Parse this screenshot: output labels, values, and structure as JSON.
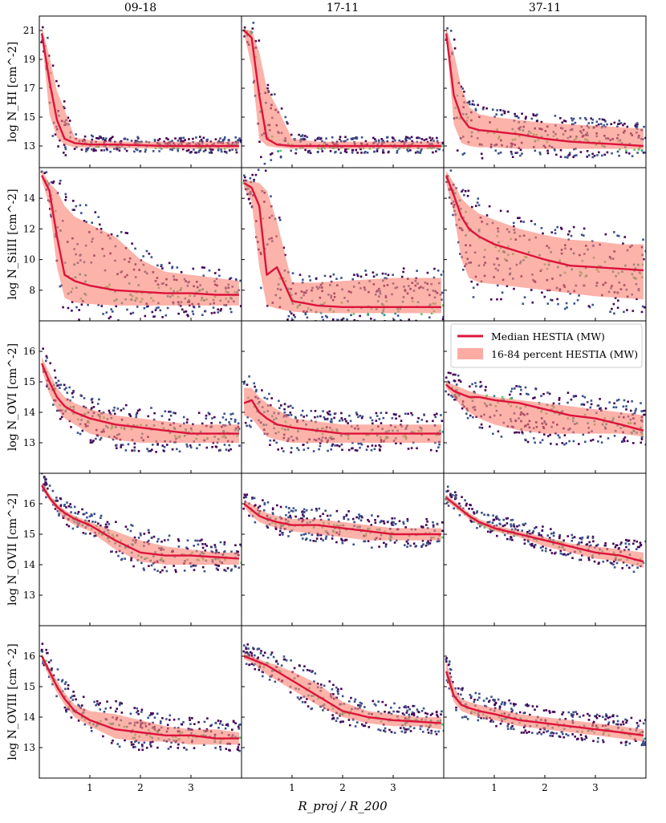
{
  "figure": {
    "xlabel": "R_proj / R_200",
    "columns": [
      "09-18",
      "17-11",
      "37-11"
    ],
    "legend": {
      "median_label": "Median HESTIA (MW)",
      "band_label": "16-84 percent HESTIA (MW)",
      "median_color": "#dc143c",
      "band_color": "#fa8072"
    },
    "colormap": [
      "#440154",
      "#3b528b",
      "#21918c",
      "#5ec962",
      "#fde725"
    ]
  },
  "chart_data": [
    {
      "type": "line",
      "ion": "HI",
      "ylabel": "log N_HI [cm^-2]",
      "xlim": [
        0,
        4
      ],
      "ylim": [
        11.5,
        22
      ],
      "xticks": [
        1,
        2,
        3
      ],
      "yticks": [
        13,
        15,
        17,
        19,
        21
      ],
      "panels": [
        {
          "column": "09-18",
          "x": [
            0.05,
            0.2,
            0.35,
            0.5,
            0.7,
            1,
            1.5,
            2,
            2.5,
            3,
            3.5,
            3.95
          ],
          "median": [
            20.8,
            17.5,
            14.8,
            13.5,
            13.2,
            13.1,
            13.1,
            13.05,
            13,
            13,
            13,
            13
          ],
          "p16": [
            20.5,
            15.2,
            13.6,
            13.1,
            12.9,
            12.9,
            12.85,
            12.85,
            12.8,
            12.8,
            12.8,
            12.8
          ],
          "p84": [
            21.2,
            19.2,
            16.8,
            15.5,
            13.6,
            13.4,
            13.3,
            13.3,
            13.3,
            13.3,
            13.3,
            13.3
          ]
        },
        {
          "column": "17-11",
          "x": [
            0.05,
            0.2,
            0.35,
            0.5,
            0.7,
            1,
            1.5,
            2,
            2.5,
            3,
            3.5,
            3.95
          ],
          "median": [
            21,
            20.5,
            16.5,
            13.5,
            13.1,
            13,
            13,
            13,
            13,
            13,
            13,
            13
          ],
          "p16": [
            20.8,
            18.5,
            13.5,
            13,
            12.9,
            12.8,
            12.8,
            12.8,
            12.8,
            12.8,
            12.8,
            12.8
          ],
          "p84": [
            21.1,
            21,
            19.5,
            17,
            15.7,
            13.5,
            13.3,
            13.3,
            13.3,
            13.3,
            13.3,
            13.3
          ]
        },
        {
          "column": "37-11",
          "x": [
            0.05,
            0.2,
            0.35,
            0.5,
            0.7,
            1,
            1.5,
            2,
            2.5,
            3,
            3.5,
            3.95
          ],
          "median": [
            20.8,
            16.5,
            15,
            14.3,
            14.1,
            14,
            13.8,
            13.5,
            13.3,
            13.2,
            13.1,
            13
          ],
          "p16": [
            20.5,
            14.5,
            13.2,
            13,
            12.9,
            12.9,
            12.8,
            12.8,
            12.8,
            12.8,
            12.8,
            12.8
          ],
          "p84": [
            21.2,
            19.5,
            17,
            15.7,
            15.2,
            15,
            14.8,
            14.6,
            14.5,
            14.4,
            14.3,
            14.2
          ]
        }
      ]
    },
    {
      "type": "line",
      "ion": "SiIII",
      "ylabel": "log N_SiIII [cm^-2]",
      "xlim": [
        0,
        4
      ],
      "ylim": [
        6,
        16
      ],
      "xticks": [
        1,
        2,
        3
      ],
      "yticks": [
        8,
        10,
        12,
        14
      ],
      "panels": [
        {
          "column": "09-18",
          "x": [
            0.05,
            0.2,
            0.35,
            0.5,
            0.7,
            1,
            1.5,
            2,
            2.5,
            3,
            3.5,
            3.95
          ],
          "median": [
            15.5,
            14.5,
            11.5,
            9,
            8.6,
            8.3,
            8,
            7.9,
            7.8,
            7.8,
            7.7,
            7.7
          ],
          "p16": [
            15.2,
            13.5,
            9.5,
            7.5,
            7.2,
            7.1,
            7,
            7,
            7,
            7,
            7,
            7
          ],
          "p84": [
            15.8,
            15,
            14.5,
            13.5,
            12.8,
            12.3,
            11.5,
            10,
            9.2,
            9,
            8.8,
            8.6
          ]
        },
        {
          "column": "17-11",
          "x": [
            0.05,
            0.2,
            0.35,
            0.5,
            0.7,
            1,
            1.5,
            2,
            2.5,
            3,
            3.5,
            3.95
          ],
          "median": [
            15,
            14.7,
            13.5,
            9,
            9.5,
            7.3,
            7,
            6.9,
            6.9,
            6.9,
            6.9,
            6.9
          ],
          "p16": [
            14.7,
            13.8,
            9.5,
            7,
            6.8,
            6.6,
            6.5,
            6.5,
            6.5,
            6.5,
            6.5,
            6.5
          ],
          "p84": [
            15.2,
            15.1,
            15,
            14.5,
            12.5,
            8.5,
            8.5,
            8.6,
            8.7,
            8.8,
            8.8,
            8.8
          ]
        },
        {
          "column": "37-11",
          "x": [
            0.05,
            0.2,
            0.35,
            0.5,
            0.7,
            1,
            1.5,
            2,
            2.5,
            3,
            3.5,
            3.95
          ],
          "median": [
            15.5,
            14.2,
            12.8,
            12,
            11.5,
            11,
            10.5,
            10,
            9.6,
            9.5,
            9.4,
            9.3
          ],
          "p16": [
            15,
            13,
            10,
            8.8,
            8.5,
            8.4,
            8.2,
            8,
            7.8,
            7.6,
            7.5,
            7.4
          ],
          "p84": [
            15.8,
            15,
            14,
            13.5,
            13,
            12.6,
            12,
            11.6,
            11.3,
            11.2,
            11,
            11
          ]
        }
      ]
    },
    {
      "type": "line",
      "ion": "OVI",
      "ylabel": "log N_OVI [cm^-2]",
      "xlim": [
        0,
        4
      ],
      "ylim": [
        12,
        17
      ],
      "xticks": [
        1,
        2,
        3
      ],
      "yticks": [
        13,
        14,
        15,
        16
      ],
      "panels": [
        {
          "column": "09-18",
          "x": [
            0.05,
            0.2,
            0.35,
            0.5,
            0.7,
            1,
            1.5,
            2,
            2.5,
            3,
            3.5,
            3.95
          ],
          "median": [
            15.6,
            15,
            14.5,
            14.2,
            14,
            13.8,
            13.6,
            13.5,
            13.4,
            13.3,
            13.3,
            13.3
          ],
          "p16": [
            15.4,
            14.6,
            14.1,
            13.8,
            13.6,
            13.3,
            13.1,
            13,
            13,
            13,
            13,
            13
          ],
          "p84": [
            15.8,
            15.3,
            14.8,
            14.5,
            14.3,
            14.1,
            13.9,
            13.8,
            13.7,
            13.6,
            13.6,
            13.6
          ]
        },
        {
          "column": "17-11",
          "x": [
            0.05,
            0.2,
            0.35,
            0.5,
            0.7,
            1,
            1.5,
            2,
            2.5,
            3,
            3.5,
            3.95
          ],
          "median": [
            14.3,
            14.4,
            14,
            13.8,
            13.6,
            13.5,
            13.4,
            13.3,
            13.3,
            13.3,
            13.3,
            13.3
          ],
          "p16": [
            13.9,
            13.8,
            13.5,
            13.2,
            13.1,
            13,
            13,
            13,
            13,
            13,
            13,
            13
          ],
          "p84": [
            14.8,
            14.8,
            14.5,
            14.3,
            14.1,
            13.8,
            13.7,
            13.6,
            13.6,
            13.6,
            13.6,
            13.6
          ]
        },
        {
          "column": "37-11",
          "x": [
            0.05,
            0.2,
            0.35,
            0.5,
            0.7,
            1,
            1.5,
            2,
            2.5,
            3,
            3.5,
            3.95
          ],
          "median": [
            14.9,
            14.7,
            14.6,
            14.5,
            14.5,
            14.4,
            14.3,
            14.1,
            13.9,
            13.8,
            13.6,
            13.4
          ],
          "p16": [
            14.8,
            14.5,
            14.2,
            14,
            13.8,
            13.6,
            13.4,
            13.3,
            13.3,
            13.3,
            13.3,
            13.2
          ],
          "p84": [
            15,
            14.9,
            14.8,
            14.7,
            14.6,
            14.5,
            14.4,
            14.3,
            14.2,
            14.1,
            14,
            13.9
          ]
        }
      ]
    },
    {
      "type": "line",
      "ion": "OVII",
      "ylabel": "log N_OVII [cm^-2]",
      "xlim": [
        0,
        4
      ],
      "ylim": [
        12,
        17
      ],
      "xticks": [
        1,
        2,
        3
      ],
      "yticks": [
        13,
        14,
        15,
        16
      ],
      "panels": [
        {
          "column": "09-18",
          "x": [
            0.05,
            0.2,
            0.35,
            0.5,
            0.7,
            1,
            1.5,
            2,
            2.5,
            3,
            3.5,
            3.95
          ],
          "median": [
            16.6,
            16.2,
            15.9,
            15.7,
            15.5,
            15.3,
            14.8,
            14.4,
            14.3,
            14.3,
            14.25,
            14.2
          ],
          "p16": [
            16.5,
            16.1,
            15.8,
            15.5,
            15.3,
            15.1,
            14.5,
            14.1,
            14,
            14,
            14,
            14
          ],
          "p84": [
            16.7,
            16.3,
            16,
            15.8,
            15.6,
            15.4,
            15.1,
            14.8,
            14.6,
            14.5,
            14.4,
            14.4
          ]
        },
        {
          "column": "17-11",
          "x": [
            0.05,
            0.2,
            0.35,
            0.5,
            0.7,
            1,
            1.5,
            2,
            2.5,
            3,
            3.5,
            3.95
          ],
          "median": [
            16,
            15.8,
            15.6,
            15.5,
            15.4,
            15.3,
            15.3,
            15.2,
            15.1,
            15,
            15,
            15
          ],
          "p16": [
            15.9,
            15.6,
            15.4,
            15.3,
            15.2,
            15.1,
            15,
            14.9,
            14.8,
            14.8,
            14.8,
            14.8
          ],
          "p84": [
            16.1,
            16,
            15.8,
            15.7,
            15.6,
            15.5,
            15.5,
            15.4,
            15.3,
            15.2,
            15.2,
            15.2
          ]
        },
        {
          "column": "37-11",
          "x": [
            0.05,
            0.2,
            0.35,
            0.5,
            0.7,
            1,
            1.5,
            2,
            2.5,
            3,
            3.5,
            3.95
          ],
          "median": [
            16.2,
            16,
            15.8,
            15.6,
            15.4,
            15.2,
            15,
            14.8,
            14.6,
            14.4,
            14.3,
            14.1
          ],
          "p16": [
            16.1,
            15.9,
            15.7,
            15.5,
            15.3,
            15.1,
            14.9,
            14.6,
            14.4,
            14.2,
            14.1,
            13.9
          ],
          "p84": [
            16.3,
            16.1,
            15.9,
            15.7,
            15.5,
            15.3,
            15.1,
            14.9,
            14.7,
            14.6,
            14.5,
            14.4
          ]
        }
      ]
    },
    {
      "type": "line",
      "ion": "OVIII",
      "ylabel": "log N_OVIII [cm^-2]",
      "xlim": [
        0,
        4
      ],
      "ylim": [
        12,
        17
      ],
      "xticks": [
        1,
        2,
        3
      ],
      "yticks": [
        13,
        14,
        15,
        16
      ],
      "panels": [
        {
          "column": "09-18",
          "x": [
            0.05,
            0.2,
            0.35,
            0.5,
            0.7,
            1,
            1.5,
            2,
            2.5,
            3,
            3.5,
            3.95
          ],
          "median": [
            16,
            15.5,
            15,
            14.6,
            14.2,
            13.9,
            13.6,
            13.5,
            13.4,
            13.4,
            13.3,
            13.3
          ],
          "p16": [
            15.9,
            15.3,
            14.8,
            14.4,
            14,
            13.7,
            13.3,
            13.2,
            13.2,
            13.1,
            13.1,
            13.1
          ],
          "p84": [
            16.1,
            15.6,
            15.2,
            14.8,
            14.4,
            14.2,
            14.1,
            13.9,
            13.7,
            13.6,
            13.6,
            13.5
          ]
        },
        {
          "column": "17-11",
          "x": [
            0.05,
            0.2,
            0.35,
            0.5,
            0.7,
            1,
            1.5,
            2,
            2.5,
            3,
            3.5,
            3.95
          ],
          "median": [
            16,
            15.9,
            15.8,
            15.7,
            15.5,
            15.2,
            14.7,
            14.2,
            14,
            13.9,
            13.85,
            13.8
          ],
          "p16": [
            15.9,
            15.8,
            15.6,
            15.4,
            15.2,
            14.9,
            14.4,
            14,
            13.8,
            13.7,
            13.7,
            13.6
          ],
          "p84": [
            16.1,
            16,
            15.9,
            15.8,
            15.7,
            15.5,
            15.1,
            14.5,
            14.2,
            14.1,
            14,
            14
          ]
        },
        {
          "column": "37-11",
          "x": [
            0.05,
            0.2,
            0.35,
            0.5,
            0.7,
            1,
            1.5,
            2,
            2.5,
            3,
            3.5,
            3.95
          ],
          "median": [
            15.5,
            14.7,
            14.4,
            14.3,
            14.2,
            14.1,
            13.9,
            13.8,
            13.7,
            13.6,
            13.5,
            13.4
          ],
          "p16": [
            15.3,
            14.5,
            14.2,
            14.1,
            14,
            13.9,
            13.7,
            13.6,
            13.5,
            13.4,
            13.3,
            13.2
          ],
          "p84": [
            15.8,
            15,
            14.6,
            14.5,
            14.4,
            14.3,
            14.1,
            14,
            13.9,
            13.8,
            13.7,
            13.6
          ]
        }
      ]
    }
  ]
}
